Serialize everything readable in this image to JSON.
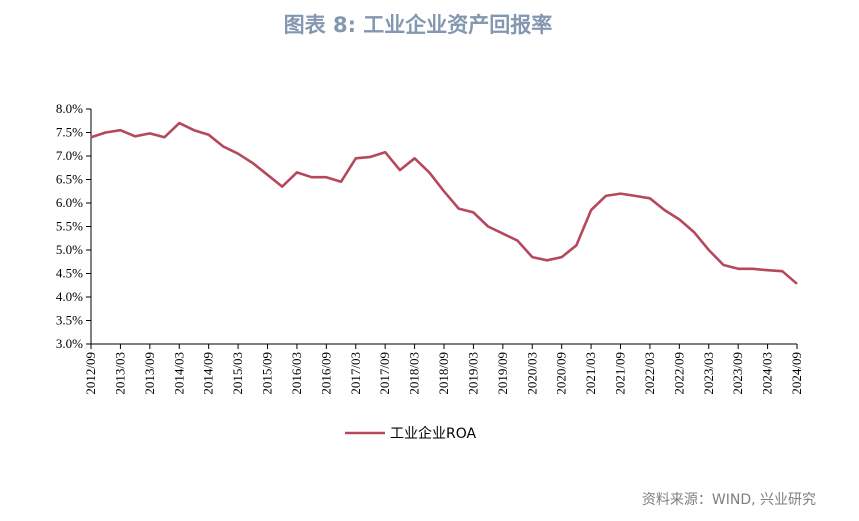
{
  "chart_data": {
    "type": "line",
    "title": "图表 8: 工业企业资产回报率",
    "source": "资料来源：WIND, 兴业研究",
    "categories": [
      "2012/09",
      null,
      "2013/03",
      null,
      "2013/09",
      null,
      "2014/03",
      null,
      "2014/09",
      null,
      "2015/03",
      null,
      "2015/09",
      null,
      "2016/03",
      null,
      "2016/09",
      null,
      "2017/03",
      null,
      "2017/09",
      null,
      "2018/03",
      null,
      "2018/09",
      null,
      "2019/03",
      null,
      "2019/09",
      null,
      "2020/03",
      null,
      "2020/09",
      null,
      "2021/03",
      null,
      "2021/09",
      null,
      "2022/03",
      null,
      "2022/09",
      null,
      "2023/03",
      null,
      "2023/09",
      null,
      "2024/03",
      null,
      "2024/09"
    ],
    "series": [
      {
        "name": "工业企业ROA",
        "color": "#b5495b",
        "values": [
          7.4,
          7.5,
          7.55,
          7.42,
          7.48,
          7.4,
          7.7,
          7.55,
          7.45,
          7.2,
          7.05,
          6.85,
          6.6,
          6.35,
          6.65,
          6.55,
          6.55,
          6.45,
          6.95,
          6.98,
          7.08,
          6.7,
          6.95,
          6.65,
          6.25,
          5.88,
          5.8,
          5.5,
          5.35,
          5.2,
          4.85,
          4.78,
          4.85,
          5.1,
          5.85,
          6.15,
          6.2,
          6.15,
          6.1,
          5.85,
          5.65,
          5.38,
          5.0,
          4.68,
          4.6,
          4.6,
          4.57,
          4.55,
          4.28
        ]
      }
    ],
    "ylim": [
      3.0,
      8.0
    ],
    "yticks": [
      {
        "value": 3.0,
        "label": "3.0%"
      },
      {
        "value": 3.5,
        "label": "3.5%"
      },
      {
        "value": 4.0,
        "label": "4.0%"
      },
      {
        "value": 4.5,
        "label": "4.5%"
      },
      {
        "value": 5.0,
        "label": "5.0%"
      },
      {
        "value": 5.5,
        "label": "5.5%"
      },
      {
        "value": 6.0,
        "label": "6.0%"
      },
      {
        "value": 6.5,
        "label": "6.5%"
      },
      {
        "value": 7.0,
        "label": "7.0%"
      },
      {
        "value": 7.5,
        "label": "7.5%"
      },
      {
        "value": 8.0,
        "label": "8.0%"
      }
    ],
    "grid": false,
    "legend": "bottom"
  }
}
